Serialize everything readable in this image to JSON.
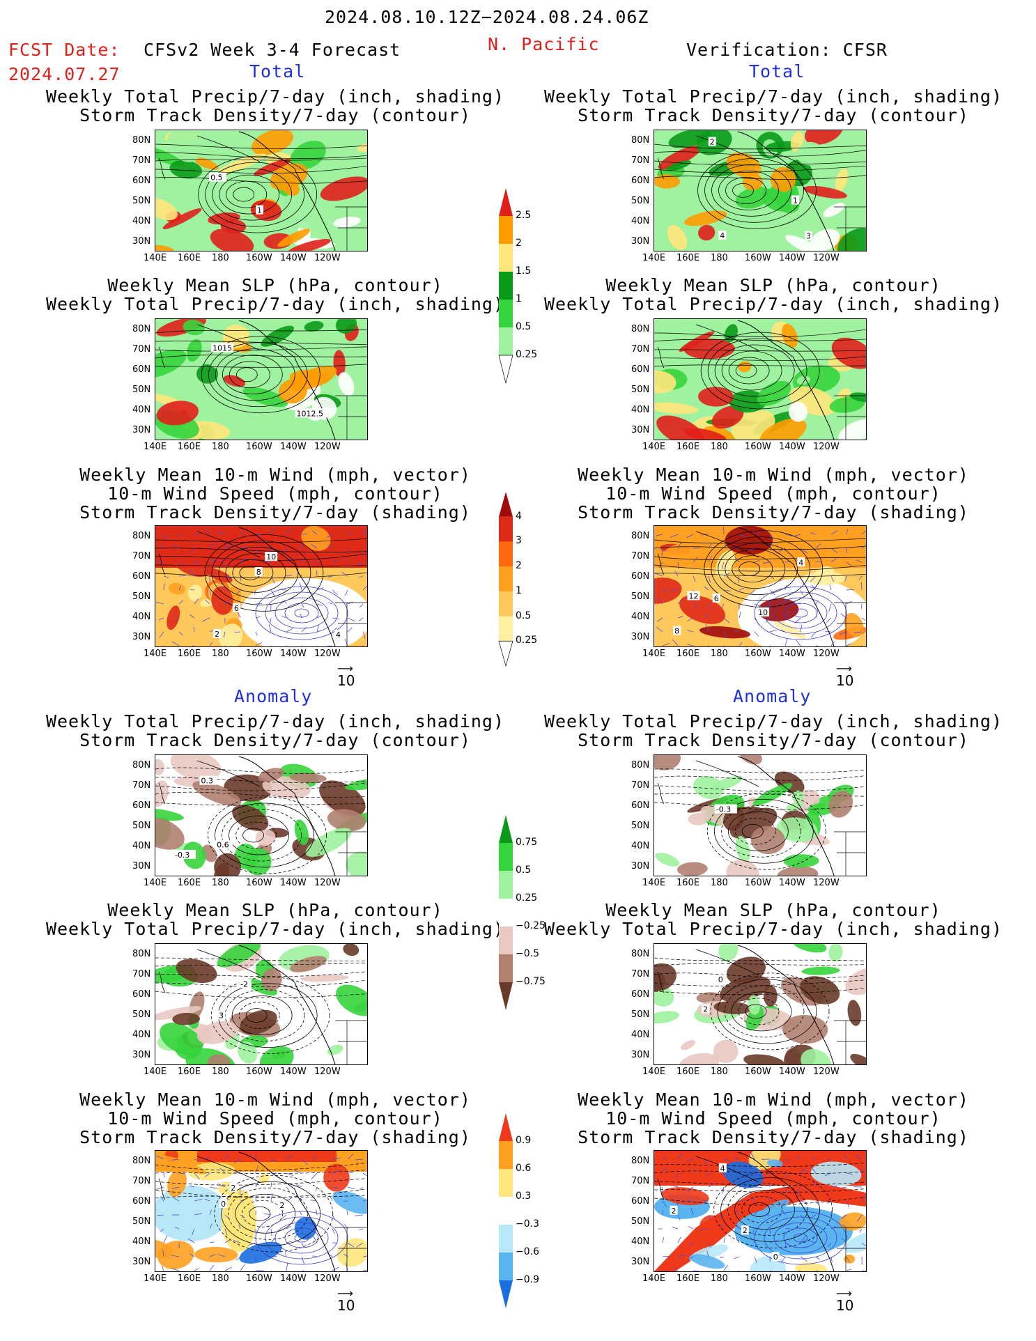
{
  "header": {
    "period": "2024.08.10.12Z−2024.08.24.06Z",
    "fcst_label": "FCST Date:",
    "fcst_date": "2024.07.27",
    "forecast_name": "CFSv2 Week 3-4 Forecast",
    "region": "N. Pacific",
    "verification": "Verification: CFSR"
  },
  "sections": {
    "total": "Total",
    "anomaly": "Anomaly"
  },
  "titles": {
    "precip_storm": [
      "Weekly Total Precip/7-day (inch, shading)",
      "Storm Track Density/7-day (contour)"
    ],
    "slp_precip": [
      "Weekly Mean SLP (hPa, contour)",
      "Weekly Total Precip/7-day (inch, shading)"
    ],
    "wind_storm": [
      "Weekly Mean 10-m Wind (mph, vector)",
      "10-m Wind Speed (mph, contour)",
      "Storm Track Density/7-day (shading)"
    ]
  },
  "axes": {
    "lat_labels": [
      "80N",
      "70N",
      "60N",
      "50N",
      "40N",
      "30N"
    ],
    "lon_labels": [
      "140E",
      "160E",
      "180",
      "160W",
      "140W",
      "120W"
    ]
  },
  "vector_ref": "10",
  "panel_labels": {
    "fc_total_precip": [
      "0.5",
      "1"
    ],
    "fc_total_slp": [
      "1015",
      "1012.5"
    ],
    "fc_total_wind": [
      "2",
      "4",
      "6",
      "8",
      "10"
    ],
    "ob_total_precip": [
      "2",
      "4",
      "1",
      "3"
    ],
    "ob_total_wind": [
      "6",
      "4",
      "8",
      "10",
      "12"
    ],
    "fc_anom_precip": [
      "0.6",
      "0.3",
      "-0.3"
    ],
    "fc_anom_slp": [
      "3",
      "-2"
    ],
    "fc_anom_wind": [
      "0",
      "2",
      "2"
    ],
    "ob_anom_precip": [
      "-0.3"
    ],
    "ob_anom_slp": [
      "0",
      "2"
    ],
    "ob_anom_wind": [
      "4",
      "2",
      "2",
      "0"
    ]
  },
  "colorbars": {
    "precip_total": {
      "labels": [
        "2.5",
        "2",
        "1.5",
        "1",
        "0.5",
        "0.25"
      ],
      "colors": [
        "#e0201b",
        "#ff9c00",
        "#ffe67a",
        "#0a9a1a",
        "#36d43c",
        "#9ff29f",
        "#ffffff"
      ]
    },
    "storm_total": {
      "labels": [
        "4",
        "3",
        "2",
        "1",
        "0.5",
        "0.25"
      ],
      "colors": [
        "#a00a0a",
        "#e02a18",
        "#ff6a10",
        "#ffa020",
        "#ffc85a",
        "#fff0a0",
        "#ffffff"
      ]
    },
    "precip_anom": {
      "labels": [
        "0.75",
        "0.5",
        "0.25",
        "−0.25",
        "−0.5",
        "−0.75"
      ],
      "colors": [
        "#0a9a1a",
        "#36d43c",
        "#9ff29f",
        "#ffffff",
        "#e8c8c0",
        "#b08070",
        "#6a3a2a"
      ]
    },
    "storm_anom": {
      "labels": [
        "0.9",
        "0.6",
        "0.3",
        "−0.3",
        "−0.6",
        "−0.9"
      ],
      "colors": [
        "#ee3a1a",
        "#ffa020",
        "#ffe67a",
        "#ffffff",
        "#b8e8f8",
        "#5ab4f0",
        "#1a6ee0"
      ]
    }
  },
  "colors": {
    "header_red": "#e0201b",
    "section_blue": "#2030e0"
  }
}
